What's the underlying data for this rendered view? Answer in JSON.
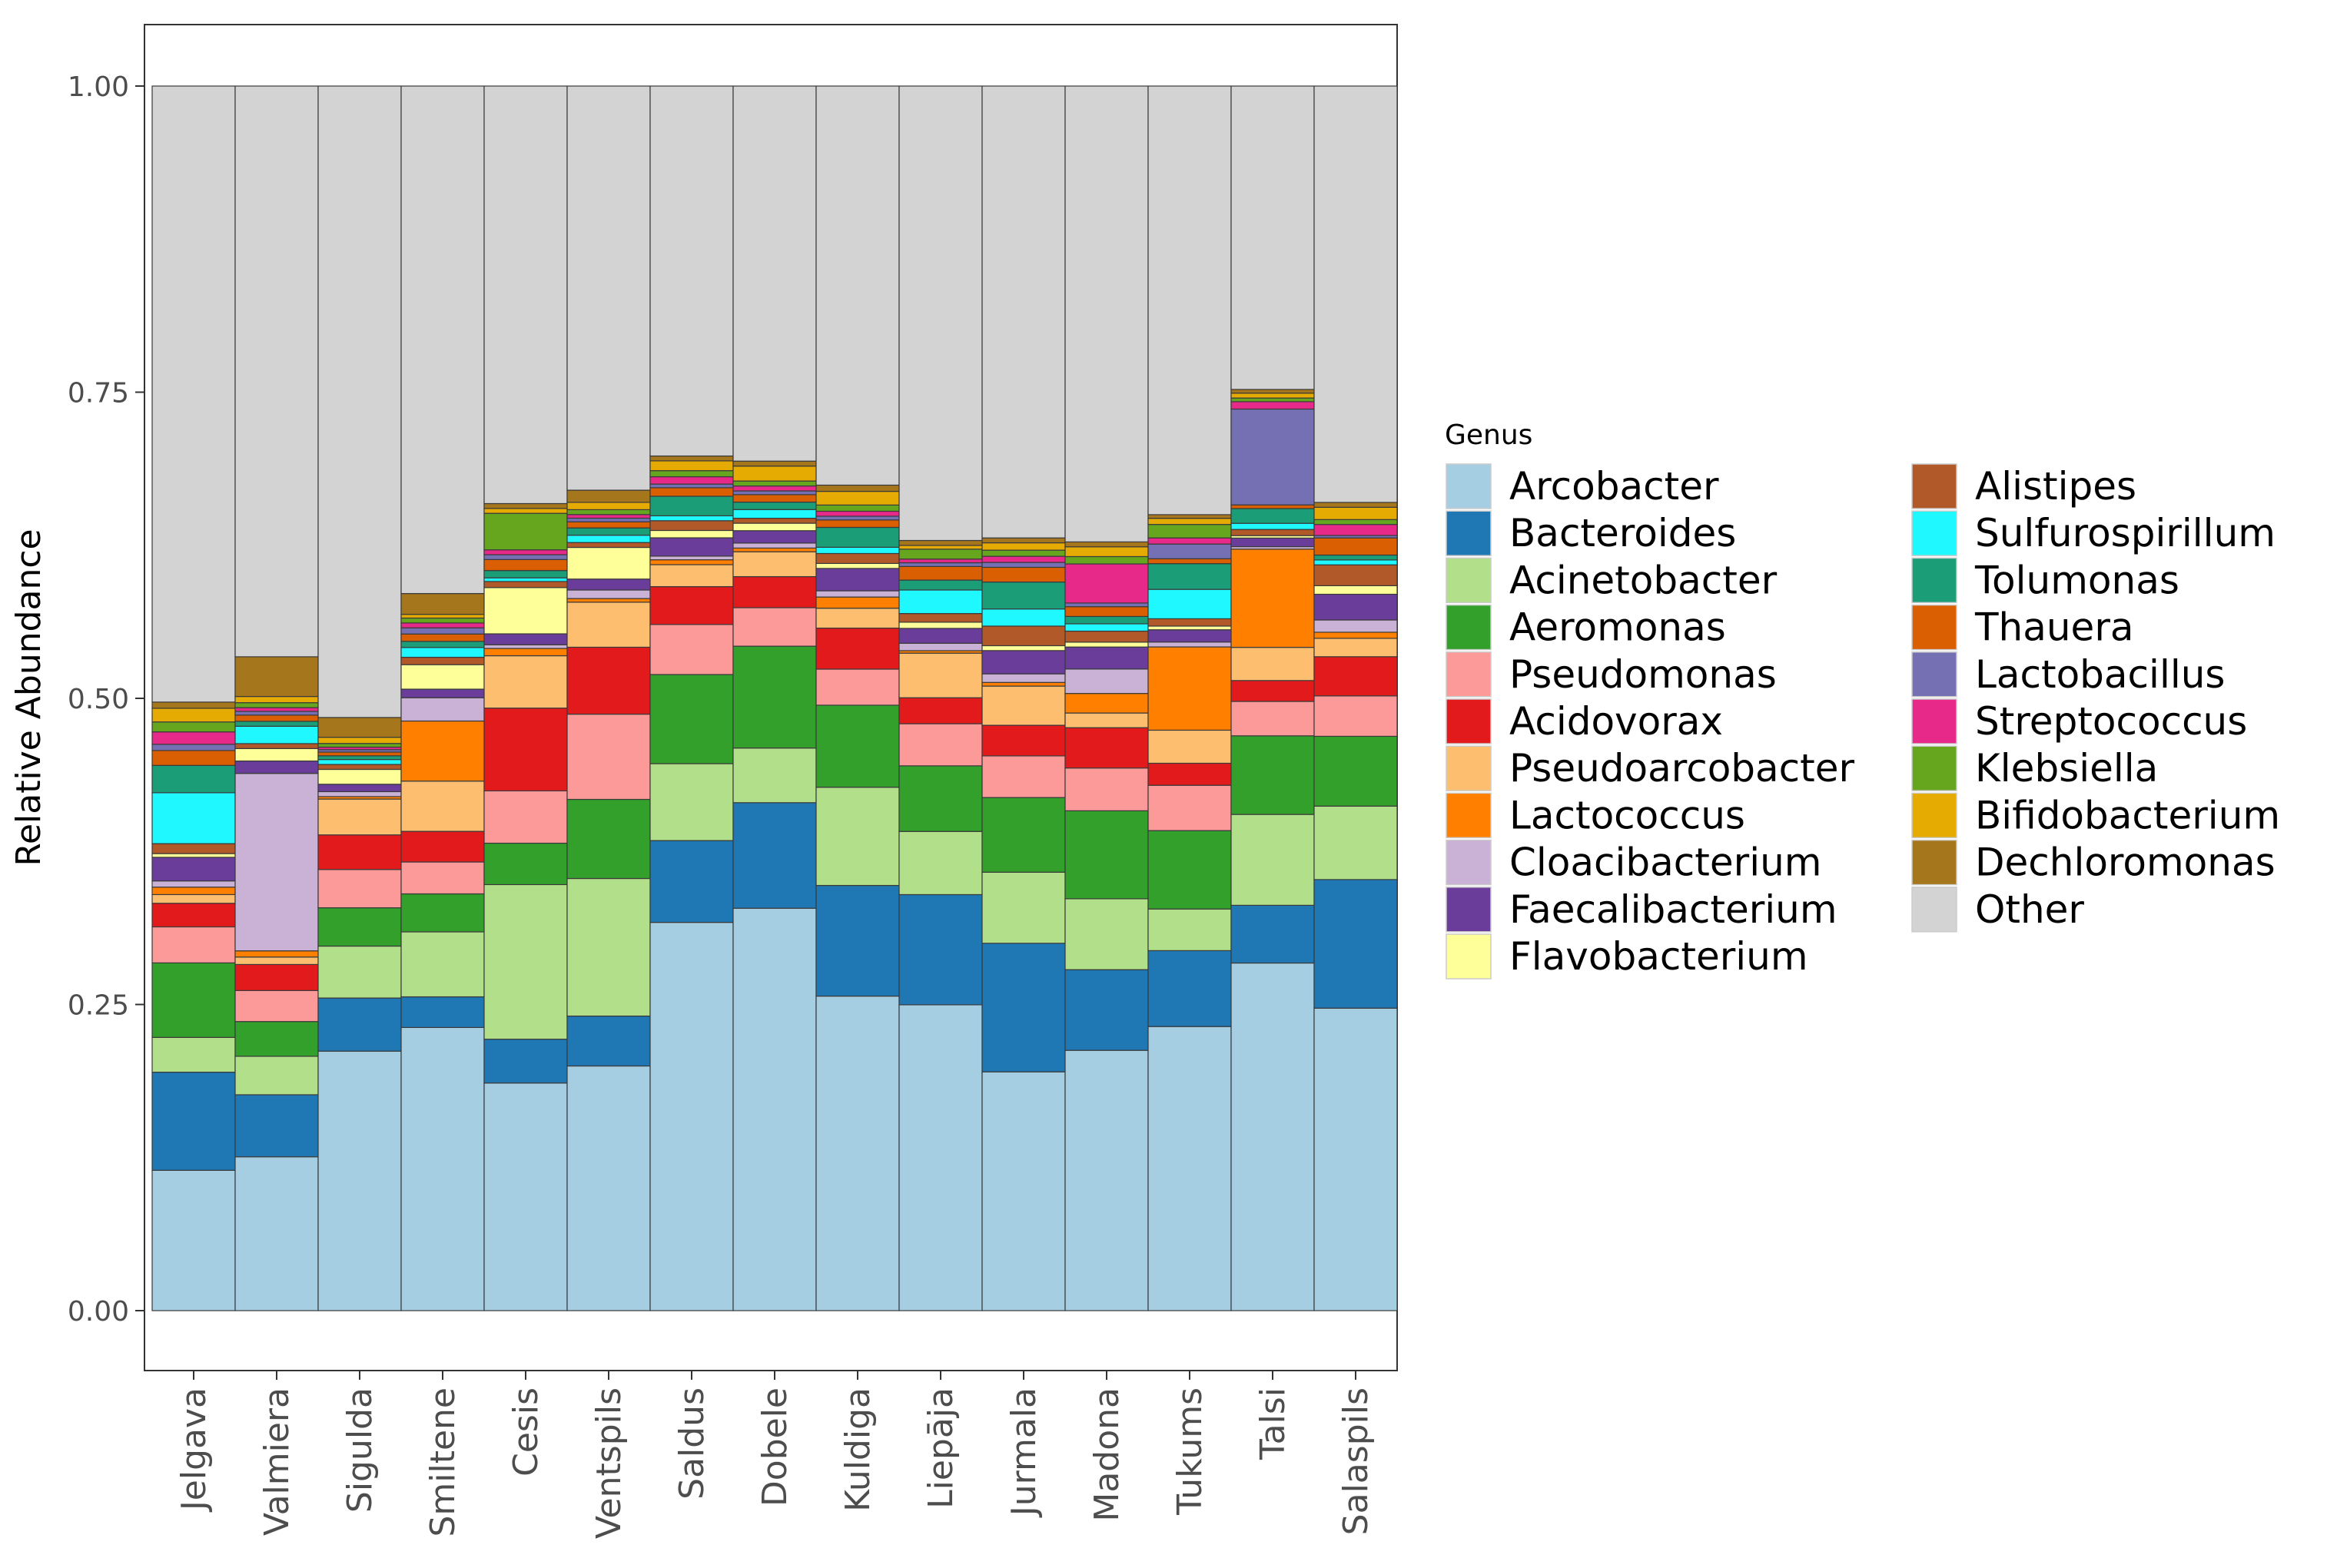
{
  "chart_data": {
    "type": "bar",
    "stacked": true,
    "title": "",
    "xlabel": "",
    "ylabel": "Relative Abundance",
    "ylim": [
      0,
      1.05
    ],
    "yticks": [
      "0.00",
      "0.25",
      "0.50",
      "0.75",
      "1.00"
    ],
    "ytick_values": [
      0,
      0.25,
      0.5,
      0.75,
      1.0
    ],
    "grid": false,
    "legend_title": "Genus",
    "legend_position": "right",
    "categories": [
      "Jelgava",
      "Valmiera",
      "Sigulda",
      "Smiltene",
      "Cesis",
      "Ventspils",
      "Saldus",
      "Dobele",
      "Kuldiga",
      "Liepāja",
      "Jurmala",
      "Madona",
      "Tukums",
      "Talsi",
      "Salaspils"
    ],
    "series": [
      {
        "name": "Arcobacter",
        "color": "#a6cee3",
        "values": [
          0.113,
          0.124,
          0.21,
          0.231,
          0.187,
          0.201,
          0.318,
          0.324,
          0.253,
          0.247,
          0.195,
          0.213,
          0.232,
          0.283,
          0.247
        ]
      },
      {
        "name": "Bacteroides",
        "color": "#1f78b4",
        "values": [
          0.079,
          0.05,
          0.043,
          0.025,
          0.036,
          0.041,
          0.067,
          0.085,
          0.089,
          0.089,
          0.105,
          0.066,
          0.062,
          0.047,
          0.105
        ]
      },
      {
        "name": "Acinetobacter",
        "color": "#b2df8a",
        "values": [
          0.028,
          0.031,
          0.042,
          0.053,
          0.127,
          0.113,
          0.063,
          0.044,
          0.079,
          0.051,
          0.058,
          0.058,
          0.034,
          0.074,
          0.06
        ]
      },
      {
        "name": "Aeromonas",
        "color": "#33a02c",
        "values": [
          0.06,
          0.028,
          0.031,
          0.031,
          0.034,
          0.065,
          0.073,
          0.082,
          0.066,
          0.053,
          0.061,
          0.072,
          0.064,
          0.064,
          0.057
        ]
      },
      {
        "name": "Pseudomonas",
        "color": "#fb9a99",
        "values": [
          0.029,
          0.025,
          0.031,
          0.026,
          0.043,
          0.07,
          0.041,
          0.031,
          0.029,
          0.034,
          0.034,
          0.035,
          0.037,
          0.028,
          0.033
        ]
      },
      {
        "name": "Acidovorax",
        "color": "#e31a1c",
        "values": [
          0.019,
          0.021,
          0.028,
          0.025,
          0.068,
          0.055,
          0.031,
          0.025,
          0.033,
          0.021,
          0.025,
          0.033,
          0.018,
          0.017,
          0.032
        ]
      },
      {
        "name": "Pseudoarcobacter",
        "color": "#fdbf6f",
        "values": [
          0.007,
          0.006,
          0.029,
          0.041,
          0.043,
          0.037,
          0.018,
          0.02,
          0.016,
          0.036,
          0.032,
          0.012,
          0.027,
          0.027,
          0.015
        ]
      },
      {
        "name": "Lactococcus",
        "color": "#ff7f00",
        "values": [
          0.006,
          0.005,
          0.002,
          0.049,
          0.006,
          0.003,
          0.004,
          0.003,
          0.009,
          0.002,
          0.003,
          0.016,
          0.068,
          0.08,
          0.005
        ]
      },
      {
        "name": "Cloacibacterium",
        "color": "#cab2d6",
        "values": [
          0.005,
          0.143,
          0.004,
          0.019,
          0.003,
          0.007,
          0.003,
          0.004,
          0.005,
          0.006,
          0.007,
          0.02,
          0.004,
          0.002,
          0.01
        ]
      },
      {
        "name": "Faecalibacterium",
        "color": "#6a3d9a",
        "values": [
          0.019,
          0.01,
          0.006,
          0.007,
          0.009,
          0.009,
          0.015,
          0.01,
          0.018,
          0.012,
          0.019,
          0.018,
          0.01,
          0.007,
          0.021
        ]
      },
      {
        "name": "Flavobacterium",
        "color": "#ffff99",
        "values": [
          0.003,
          0.01,
          0.012,
          0.02,
          0.038,
          0.026,
          0.006,
          0.006,
          0.004,
          0.005,
          0.004,
          0.004,
          0.003,
          0.002,
          0.007
        ]
      },
      {
        "name": "Alistipes",
        "color": "#b15928",
        "values": [
          0.008,
          0.004,
          0.004,
          0.006,
          0.005,
          0.004,
          0.008,
          0.004,
          0.008,
          0.007,
          0.016,
          0.009,
          0.006,
          0.005,
          0.017
        ]
      },
      {
        "name": "Sulfurospirillum",
        "color": "#1ff8ff",
        "values": [
          0.041,
          0.014,
          0.004,
          0.008,
          0.003,
          0.006,
          0.004,
          0.007,
          0.005,
          0.019,
          0.014,
          0.006,
          0.024,
          0.005,
          0.004
        ]
      },
      {
        "name": "Tolumonas",
        "color": "#1b9e77",
        "values": [
          0.022,
          0.004,
          0.003,
          0.005,
          0.006,
          0.006,
          0.016,
          0.006,
          0.016,
          0.008,
          0.022,
          0.006,
          0.021,
          0.012,
          0.004
        ]
      },
      {
        "name": "Thauera",
        "color": "#d95f02",
        "values": [
          0.012,
          0.005,
          0.003,
          0.006,
          0.009,
          0.005,
          0.007,
          0.006,
          0.006,
          0.011,
          0.012,
          0.008,
          0.004,
          0.003,
          0.014
        ]
      },
      {
        "name": "Lactobacillus",
        "color": "#7570b3",
        "values": [
          0.005,
          0.003,
          0.002,
          0.005,
          0.004,
          0.003,
          0.003,
          0.003,
          0.003,
          0.003,
          0.004,
          0.003,
          0.012,
          0.078,
          0.002
        ]
      },
      {
        "name": "Streptococcus",
        "color": "#e7298a",
        "values": [
          0.01,
          0.003,
          0.002,
          0.004,
          0.004,
          0.003,
          0.006,
          0.004,
          0.004,
          0.003,
          0.005,
          0.032,
          0.005,
          0.006,
          0.009
        ]
      },
      {
        "name": "Klebsiella",
        "color": "#66a61e",
        "values": [
          0.008,
          0.004,
          0.003,
          0.004,
          0.03,
          0.004,
          0.005,
          0.004,
          0.005,
          0.008,
          0.005,
          0.006,
          0.011,
          0.003,
          0.004
        ]
      },
      {
        "name": "Bifidobacterium",
        "color": "#e6ab02",
        "values": [
          0.011,
          0.005,
          0.005,
          0.003,
          0.004,
          0.006,
          0.008,
          0.012,
          0.011,
          0.003,
          0.006,
          0.008,
          0.005,
          0.004,
          0.01
        ]
      },
      {
        "name": "Dechloromonas",
        "color": "#a6761d",
        "values": [
          0.005,
          0.032,
          0.016,
          0.017,
          0.004,
          0.01,
          0.004,
          0.004,
          0.005,
          0.004,
          0.004,
          0.004,
          0.003,
          0.003,
          0.004
        ]
      },
      {
        "name": "Other",
        "color": "#d3d3d3",
        "values": [
          0.496,
          0.46,
          0.511,
          0.414,
          0.343,
          0.332,
          0.303,
          0.302,
          0.321,
          0.367,
          0.369,
          0.373,
          0.35,
          0.247,
          0.34
        ]
      }
    ]
  }
}
